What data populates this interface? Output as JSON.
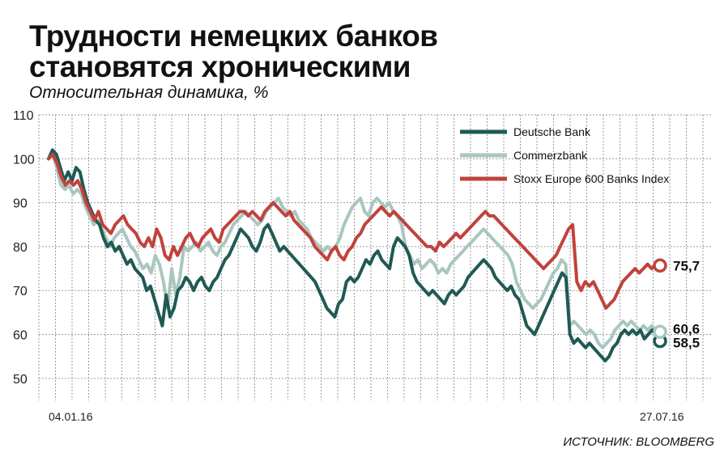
{
  "header": {
    "title_line1": "Трудности немецких банков",
    "title_line2": "становятся хроническими",
    "subtitle": "Относительная динамика, %"
  },
  "source": "ИСТОЧНИК: BLOOMBERG",
  "chart_data": {
    "type": "line",
    "title": "Трудности немецких банков становятся хроническими",
    "ylabel": "Относительная динамика, %",
    "ylim": [
      45,
      110
    ],
    "yticks": [
      50,
      60,
      70,
      80,
      90,
      100,
      110
    ],
    "xtick_labels": [
      "04.01.16",
      "27.07.16"
    ],
    "grid": true,
    "legend_position": "top-right",
    "series": [
      {
        "name": "Deutsche Bank",
        "color": "#1f5a55",
        "end_label": "58,5",
        "values": [
          100,
          102,
          101,
          98,
          95,
          97,
          95,
          98,
          97,
          93,
          90,
          88,
          86,
          85,
          82,
          80,
          81,
          79,
          80,
          78,
          76,
          77,
          75,
          74,
          73,
          70,
          71,
          68,
          65,
          62,
          69,
          64,
          66,
          70,
          71,
          73,
          72,
          70,
          72,
          73,
          71,
          70,
          72,
          73,
          75,
          77,
          78,
          80,
          82,
          84,
          83,
          82,
          80,
          79,
          81,
          84,
          85,
          83,
          81,
          79,
          80,
          79,
          78,
          77,
          76,
          75,
          74,
          73,
          72,
          70,
          68,
          66,
          65,
          64,
          67,
          68,
          72,
          73,
          72,
          73,
          75,
          77,
          76,
          78,
          79,
          77,
          76,
          75,
          80,
          82,
          81,
          80,
          78,
          74,
          72,
          71,
          70,
          69,
          70,
          69,
          68,
          67,
          69,
          70,
          69,
          70,
          71,
          73,
          74,
          75,
          76,
          77,
          76,
          75,
          73,
          72,
          71,
          70,
          71,
          69,
          68,
          65,
          62,
          61,
          60,
          62,
          64,
          66,
          68,
          70,
          72,
          74,
          73,
          60,
          58,
          59,
          58,
          57,
          58,
          57,
          56,
          55,
          54,
          55,
          57,
          58,
          60,
          61,
          60,
          61,
          60,
          61,
          59,
          60,
          61,
          60,
          58.5
        ]
      },
      {
        "name": "Commerzbank",
        "color": "#a9c6bf",
        "end_label": "60,6",
        "values": [
          100,
          101,
          98,
          94,
          93,
          94,
          92,
          93,
          92,
          89,
          87,
          85,
          86,
          84,
          82,
          80,
          82,
          83,
          84,
          82,
          80,
          79,
          77,
          75,
          76,
          74,
          78,
          76,
          72,
          66,
          75,
          69,
          73,
          80,
          79,
          80,
          81,
          79,
          80,
          81,
          79,
          78,
          80,
          81,
          83,
          85,
          86,
          87,
          88,
          87,
          86,
          85,
          86,
          88,
          89,
          90,
          91,
          89,
          88,
          87,
          88,
          86,
          85,
          84,
          82,
          81,
          80,
          79,
          80,
          79,
          80,
          82,
          85,
          87,
          89,
          90,
          91,
          88,
          87,
          90,
          91,
          90,
          89,
          90,
          88,
          87,
          85,
          80,
          78,
          76,
          77,
          75,
          76,
          77,
          76,
          74,
          75,
          74,
          76,
          77,
          78,
          79,
          80,
          81,
          82,
          83,
          84,
          83,
          82,
          81,
          80,
          79,
          78,
          76,
          72,
          70,
          68,
          67,
          66,
          67,
          68,
          70,
          72,
          74,
          75,
          77,
          76,
          62,
          63,
          62,
          61,
          60,
          61,
          60,
          58,
          57,
          58,
          59,
          61,
          62,
          63,
          62,
          63,
          62,
          61,
          62,
          61,
          62,
          61,
          60.6
        ]
      },
      {
        "name": "Stoxx Europe 600 Banks Index",
        "color": "#c0433b",
        "end_label": "75,7",
        "values": [
          100,
          101,
          99,
          96,
          94,
          95,
          94,
          95,
          93,
          90,
          88,
          86,
          88,
          85,
          84,
          83,
          85,
          86,
          87,
          85,
          84,
          83,
          81,
          80,
          82,
          80,
          84,
          82,
          78,
          77,
          80,
          78,
          80,
          82,
          83,
          81,
          80,
          82,
          83,
          84,
          82,
          81,
          84,
          85,
          86,
          87,
          88,
          88,
          87,
          88,
          87,
          86,
          88,
          89,
          90,
          89,
          88,
          87,
          88,
          86,
          85,
          84,
          83,
          82,
          80,
          79,
          78,
          77,
          79,
          80,
          78,
          77,
          79,
          80,
          82,
          83,
          85,
          86,
          87,
          88,
          89,
          88,
          87,
          88,
          87,
          86,
          85,
          84,
          83,
          82,
          81,
          80,
          80,
          79,
          81,
          80,
          81,
          82,
          83,
          82,
          83,
          84,
          85,
          86,
          87,
          88,
          87,
          87,
          86,
          85,
          84,
          83,
          82,
          81,
          80,
          79,
          78,
          77,
          76,
          75,
          76,
          77,
          78,
          80,
          82,
          84,
          85,
          72,
          70,
          72,
          71,
          72,
          70,
          68,
          66,
          67,
          68,
          70,
          72,
          73,
          74,
          75,
          74,
          75,
          76,
          75,
          76,
          75.7
        ]
      }
    ]
  }
}
